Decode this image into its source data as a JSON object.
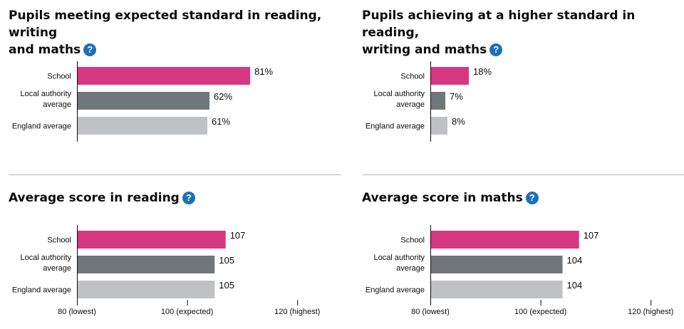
{
  "charts": [
    {
      "id": "expected",
      "title_line1": "Pupils meeting expected standard in reading, writing",
      "title_line2": "and maths",
      "help_icon": "question-circle-icon",
      "chart_data": {
        "type": "bar",
        "orientation": "horizontal",
        "categories": [
          "School",
          "Local authority average",
          "England average"
        ],
        "values": [
          81,
          62,
          61
        ],
        "value_labels": [
          "81%",
          "62%",
          "61%"
        ],
        "xlim": [
          0,
          100
        ]
      }
    },
    {
      "id": "higher",
      "title_line1": "Pupils achieving at a higher standard in reading,",
      "title_line2": "writing and maths",
      "help_icon": "question-circle-icon",
      "chart_data": {
        "type": "bar",
        "orientation": "horizontal",
        "categories": [
          "School",
          "Local authority average",
          "England average"
        ],
        "values": [
          18,
          7,
          8
        ],
        "value_labels": [
          "18%",
          "7%",
          "8%"
        ],
        "xlim": [
          0,
          100
        ]
      }
    },
    {
      "id": "reading",
      "title_line1": "Average score in reading",
      "title_line2": "",
      "help_icon": "question-circle-icon",
      "chart_data": {
        "type": "bar",
        "orientation": "horizontal",
        "categories": [
          "School",
          "Local authority average",
          "England average"
        ],
        "values": [
          107,
          105,
          105
        ],
        "value_labels": [
          "107",
          "105",
          "105"
        ],
        "xlim": [
          80,
          120
        ],
        "x_ticks": [
          {
            "value": 80,
            "label": "80 (lowest)"
          },
          {
            "value": 100,
            "label": "100 (expected)"
          },
          {
            "value": 120,
            "label": "120 (highest)"
          }
        ]
      }
    },
    {
      "id": "maths",
      "title_line1": "Average score in maths",
      "title_line2": "",
      "help_icon": "question-circle-icon",
      "chart_data": {
        "type": "bar",
        "orientation": "horizontal",
        "categories": [
          "School",
          "Local authority average",
          "England average"
        ],
        "values": [
          107,
          104,
          104
        ],
        "value_labels": [
          "107",
          "104",
          "104"
        ],
        "xlim": [
          80,
          120
        ],
        "x_ticks": [
          {
            "value": 80,
            "label": "80 (lowest)"
          },
          {
            "value": 100,
            "label": "100 (expected)"
          },
          {
            "value": 120,
            "label": "120 (highest)"
          }
        ]
      }
    }
  ],
  "colors": {
    "school": "#d53880",
    "local_authority": "#6f777b",
    "england": "#bfc1c3",
    "help_icon": "#1d70b8"
  }
}
